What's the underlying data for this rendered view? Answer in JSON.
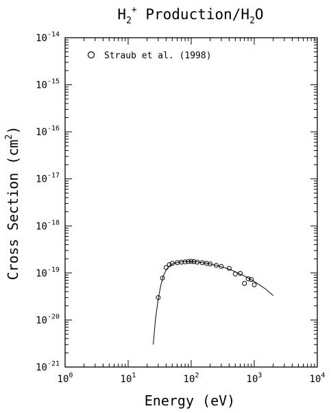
{
  "chart_data": {
    "type": "scatter",
    "title": "H2+ Production/H2O",
    "title_parts": {
      "base": "H",
      "sub1": "2",
      "sup1": "+",
      "rest": " Production/H",
      "sub2": "2",
      "end": "O"
    },
    "xlabel": "Energy (eV)",
    "ylabel": "Cross Section (cm2)",
    "ylabel_parts": {
      "base": "Cross Section (cm",
      "sup": "2",
      "end": ")"
    },
    "x_scale": "log",
    "y_scale": "log",
    "xlim": [
      1,
      10000
    ],
    "ylim": [
      1e-21,
      1e-14
    ],
    "x_tick_exponents": [
      0,
      1,
      2,
      3,
      4
    ],
    "y_tick_exponents": [
      -21,
      -20,
      -19,
      -18,
      -17,
      -16,
      -15,
      -14
    ],
    "tick_base": "10",
    "legend_placement": "top-left",
    "grid": false,
    "series": [
      {
        "name": "Straub et al. (1998)",
        "marker": "circle",
        "x": [
          30,
          35,
          40,
          45,
          50,
          60,
          70,
          80,
          90,
          100,
          110,
          125,
          150,
          175,
          200,
          250,
          300,
          400,
          500,
          600,
          700,
          800,
          900,
          1000
        ],
        "y": [
          3e-20,
          7.8e-20,
          1.3e-19,
          1.5e-19,
          1.6e-19,
          1.65e-19,
          1.7e-19,
          1.72e-19,
          1.75e-19,
          1.76e-19,
          1.74e-19,
          1.7e-19,
          1.65e-19,
          1.6e-19,
          1.55e-19,
          1.45e-19,
          1.38e-19,
          1.25e-19,
          9.5e-20,
          9.8e-20,
          6e-20,
          7.5e-20,
          7.2e-20,
          5.6e-20
        ]
      },
      {
        "type": "line",
        "x": [
          25,
          27,
          30,
          33,
          36,
          40,
          45,
          50,
          60,
          70,
          80,
          100,
          120,
          150,
          200,
          300,
          400,
          500,
          700,
          1000,
          1500,
          2000
        ],
        "y": [
          3e-21,
          1e-20,
          2.8e-20,
          5.5e-20,
          8.5e-20,
          1.15e-19,
          1.4e-19,
          1.55e-19,
          1.66e-19,
          1.72e-19,
          1.75e-19,
          1.76e-19,
          1.73e-19,
          1.66e-19,
          1.55e-19,
          1.36e-19,
          1.2e-19,
          1.06e-19,
          8.6e-20,
          6.6e-20,
          4.6e-20,
          3.3e-20
        ]
      }
    ]
  }
}
